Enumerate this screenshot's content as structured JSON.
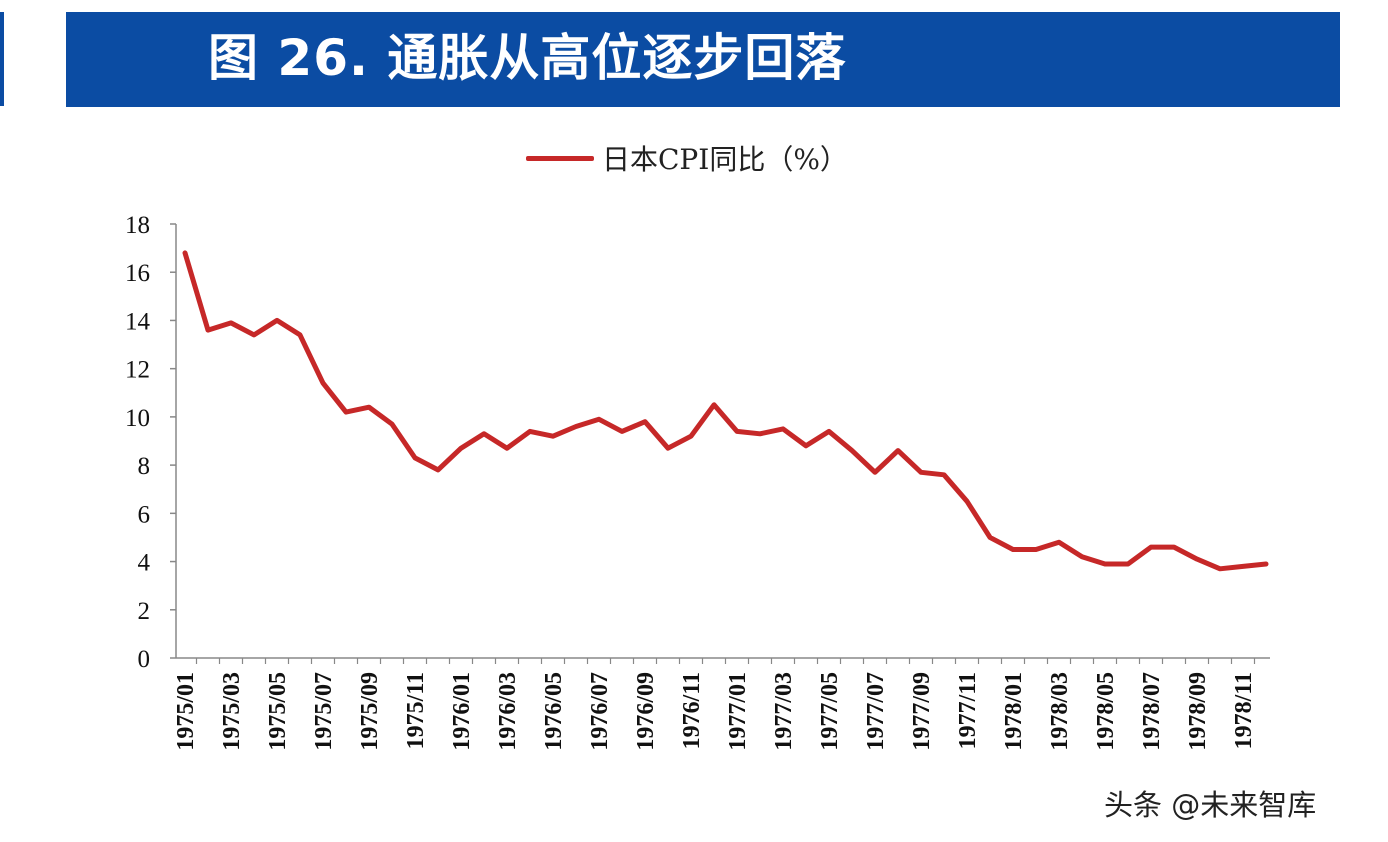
{
  "title": "图 26. 通胀从高位逐步回落",
  "watermark": "头条 @未来智库",
  "colors": {
    "banner": "#0B4CA3",
    "series_line": "#C62828",
    "axis": "#888888"
  },
  "chart_data": {
    "type": "line",
    "title": "",
    "xlabel": "",
    "ylabel": "",
    "ylim": [
      0,
      18
    ],
    "yticks": [
      0,
      2,
      4,
      6,
      8,
      10,
      12,
      14,
      16,
      18
    ],
    "grid": false,
    "legend_placement": "top-center",
    "x": [
      "1975/01",
      "1975/02",
      "1975/03",
      "1975/04",
      "1975/05",
      "1975/06",
      "1975/07",
      "1975/08",
      "1975/09",
      "1975/10",
      "1975/11",
      "1975/12",
      "1976/01",
      "1976/02",
      "1976/03",
      "1976/04",
      "1976/05",
      "1976/06",
      "1976/07",
      "1976/08",
      "1976/09",
      "1976/10",
      "1976/11",
      "1976/12",
      "1977/01",
      "1977/02",
      "1977/03",
      "1977/04",
      "1977/05",
      "1977/06",
      "1977/07",
      "1977/08",
      "1977/09",
      "1977/10",
      "1977/11",
      "1977/12",
      "1978/01",
      "1978/02",
      "1978/03",
      "1978/04",
      "1978/05",
      "1978/06",
      "1978/07",
      "1978/08",
      "1978/09",
      "1978/10",
      "1978/11",
      "1978/12"
    ],
    "xtick_labels": [
      "1975/01",
      "1975/03",
      "1975/05",
      "1975/07",
      "1975/09",
      "1975/11",
      "1976/01",
      "1976/03",
      "1976/05",
      "1976/07",
      "1976/09",
      "1976/11",
      "1977/01",
      "1977/03",
      "1977/05",
      "1977/07",
      "1977/09",
      "1977/11",
      "1978/01",
      "1978/03",
      "1978/05",
      "1978/07",
      "1978/09",
      "1978/11"
    ],
    "series": [
      {
        "name": "日本CPI同比（%）",
        "values": [
          16.8,
          13.6,
          13.9,
          13.4,
          14.0,
          13.4,
          11.4,
          10.2,
          10.4,
          9.7,
          8.3,
          7.8,
          8.7,
          9.3,
          8.7,
          9.4,
          9.2,
          9.6,
          9.9,
          9.4,
          9.8,
          8.7,
          9.2,
          10.5,
          9.4,
          9.3,
          9.5,
          8.8,
          9.4,
          8.6,
          7.7,
          8.6,
          7.7,
          7.6,
          6.5,
          5.0,
          4.5,
          4.5,
          4.8,
          4.2,
          3.9,
          3.9,
          4.6,
          4.6,
          4.1,
          3.7,
          3.8,
          3.9
        ]
      }
    ]
  }
}
